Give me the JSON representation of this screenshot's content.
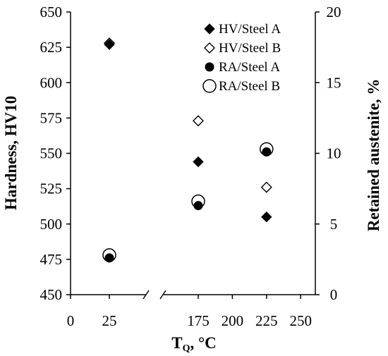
{
  "chart_data": {
    "type": "scatter",
    "xlabel_main": "T",
    "xlabel_sub": "Q",
    "xlabel_unit": ", °C",
    "ylabel_left": "Hardness, HV10",
    "ylabel_right": "Retained austenite, %",
    "ylim_left": [
      450,
      650
    ],
    "yticks_left": [
      450,
      475,
      500,
      525,
      550,
      575,
      600,
      625,
      650
    ],
    "ylim_right": [
      0,
      20
    ],
    "yticks_right": [
      0,
      5,
      10,
      15,
      20
    ],
    "x_axis_break": true,
    "xticks": [
      {
        "value": 0,
        "label": "0"
      },
      {
        "value": 25,
        "label": "25"
      },
      {
        "value": 175,
        "label": "175"
      },
      {
        "value": 200,
        "label": "200"
      },
      {
        "value": 225,
        "label": "225"
      },
      {
        "value": 250,
        "label": "250"
      }
    ],
    "legend_position": "top-right",
    "series": [
      {
        "name": "HV/Steel A",
        "marker": "diamond-filled",
        "axis": "left",
        "points": [
          {
            "x": 25,
            "y": 627
          },
          {
            "x": 175,
            "y": 544
          },
          {
            "x": 225,
            "y": 505
          }
        ]
      },
      {
        "name": "HV/Steel B",
        "marker": "diamond-open",
        "axis": "left",
        "points": [
          {
            "x": 25,
            "y": 628
          },
          {
            "x": 175,
            "y": 573
          },
          {
            "x": 225,
            "y": 526
          }
        ]
      },
      {
        "name": "RA/Steel A",
        "marker": "circle-filled",
        "axis": "right",
        "points": [
          {
            "x": 25,
            "y": 2.6
          },
          {
            "x": 175,
            "y": 6.3
          },
          {
            "x": 225,
            "y": 10.1
          }
        ]
      },
      {
        "name": "RA/Steel B",
        "marker": "circle-open",
        "axis": "right",
        "points": [
          {
            "x": 25,
            "y": 2.8
          },
          {
            "x": 175,
            "y": 6.6
          },
          {
            "x": 225,
            "y": 10.3
          }
        ]
      }
    ]
  }
}
